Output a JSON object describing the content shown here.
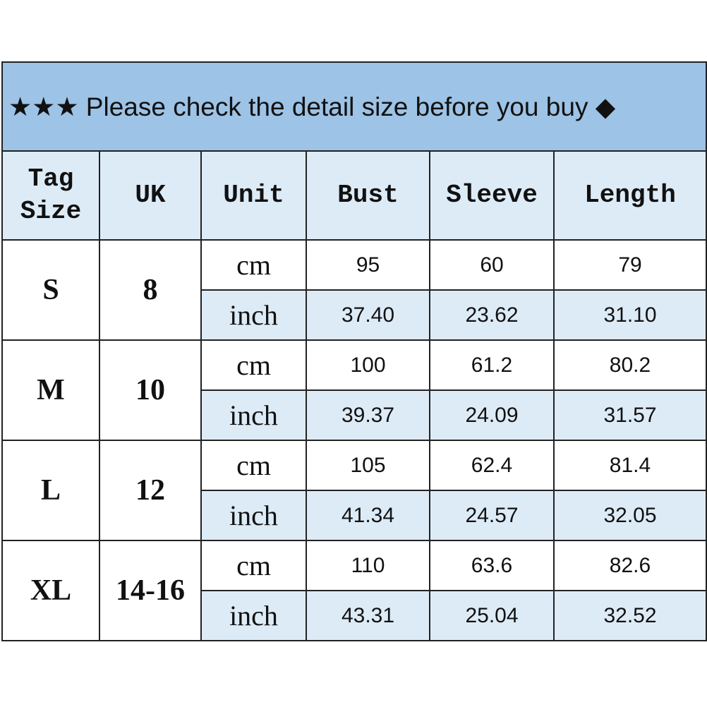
{
  "title": "★★★ Please check the detail size before you buy ◆",
  "headers": [
    "Tag\nSize",
    "UK",
    "Unit",
    "Bust",
    "Sleeve",
    "Length"
  ],
  "header_tag": [
    "Tag",
    "Size"
  ],
  "colors": {
    "title_bg": "#9DC3E6",
    "header_bg": "#DDEBF7",
    "inch_row_bg": "#DDEBF7"
  },
  "rows": [
    {
      "tag": "S",
      "uk": "8",
      "cm": {
        "unit": "cm",
        "bust": "95",
        "sleeve": "60",
        "length": "79"
      },
      "inch": {
        "unit": "inch",
        "bust": "37.40",
        "sleeve": "23.62",
        "length": "31.10"
      }
    },
    {
      "tag": "M",
      "uk": "10",
      "cm": {
        "unit": "cm",
        "bust": "100",
        "sleeve": "61.2",
        "length": "80.2"
      },
      "inch": {
        "unit": "inch",
        "bust": "39.37",
        "sleeve": "24.09",
        "length": "31.57"
      }
    },
    {
      "tag": "L",
      "uk": "12",
      "cm": {
        "unit": "cm",
        "bust": "105",
        "sleeve": "62.4",
        "length": "81.4"
      },
      "inch": {
        "unit": "inch",
        "bust": "41.34",
        "sleeve": "24.57",
        "length": "32.05"
      }
    },
    {
      "tag": "XL",
      "uk": "14-16",
      "cm": {
        "unit": "cm",
        "bust": "110",
        "sleeve": "63.6",
        "length": "82.6"
      },
      "inch": {
        "unit": "inch",
        "bust": "43.31",
        "sleeve": "25.04",
        "length": "32.52"
      }
    }
  ]
}
